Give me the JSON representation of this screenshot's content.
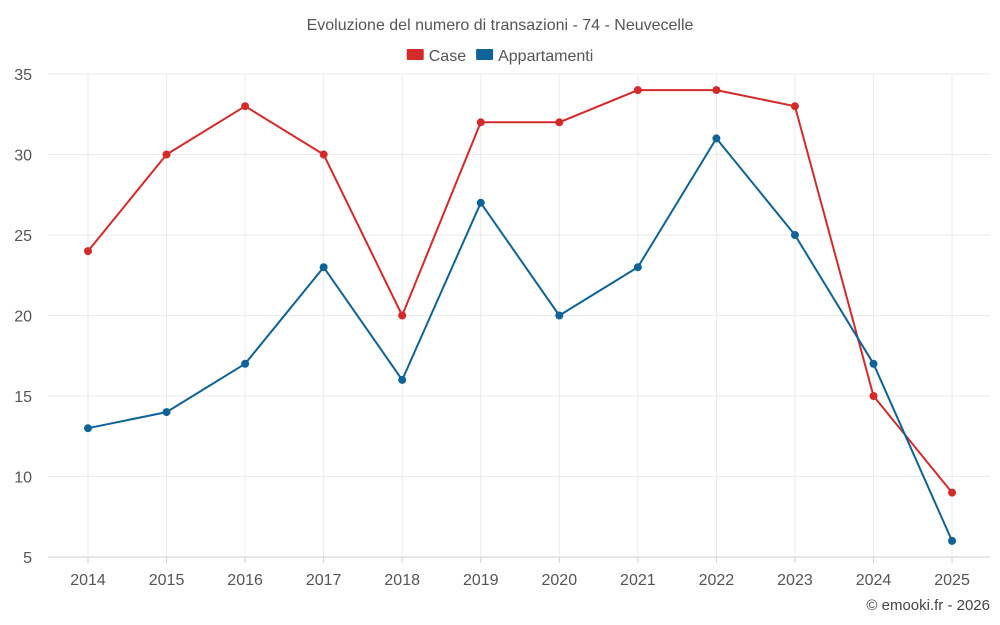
{
  "chart_data": {
    "type": "line",
    "title": "Evoluzione del numero di transazioni - 74 - Neuvecelle",
    "categories": [
      "2014",
      "2015",
      "2016",
      "2017",
      "2018",
      "2019",
      "2020",
      "2021",
      "2022",
      "2023",
      "2024",
      "2025"
    ],
    "series": [
      {
        "name": "Case",
        "color": "#d42a2a",
        "values": [
          24,
          30,
          33,
          30,
          20,
          32,
          32,
          34,
          34,
          33,
          15,
          9
        ]
      },
      {
        "name": "Appartamenti",
        "color": "#0e6399",
        "values": [
          13,
          14,
          17,
          23,
          16,
          27,
          20,
          23,
          31,
          25,
          17,
          6
        ]
      }
    ],
    "ylim": [
      5,
      35
    ],
    "yticks": [
      5,
      10,
      15,
      20,
      25,
      30,
      35
    ],
    "grid": true,
    "legend": "top-center",
    "xlabel": "",
    "ylabel": ""
  },
  "credit": "© emooki.fr - 2026"
}
